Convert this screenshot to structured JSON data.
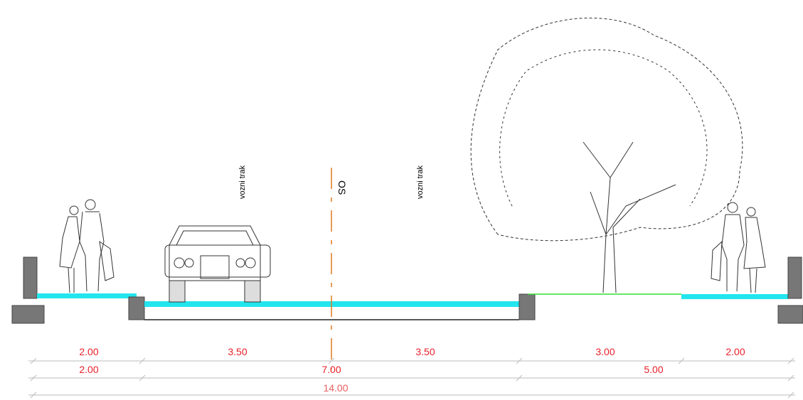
{
  "labels": {
    "lane_left": "vozni trak",
    "axis": "OS",
    "lane_right": "vozni trak"
  },
  "dimensions": {
    "row1": [
      "2.00",
      "3.50",
      "3.50",
      "3.00",
      "2.00"
    ],
    "row2": [
      "2.00",
      "7.00",
      "5.00"
    ],
    "total": "14.00"
  }
}
